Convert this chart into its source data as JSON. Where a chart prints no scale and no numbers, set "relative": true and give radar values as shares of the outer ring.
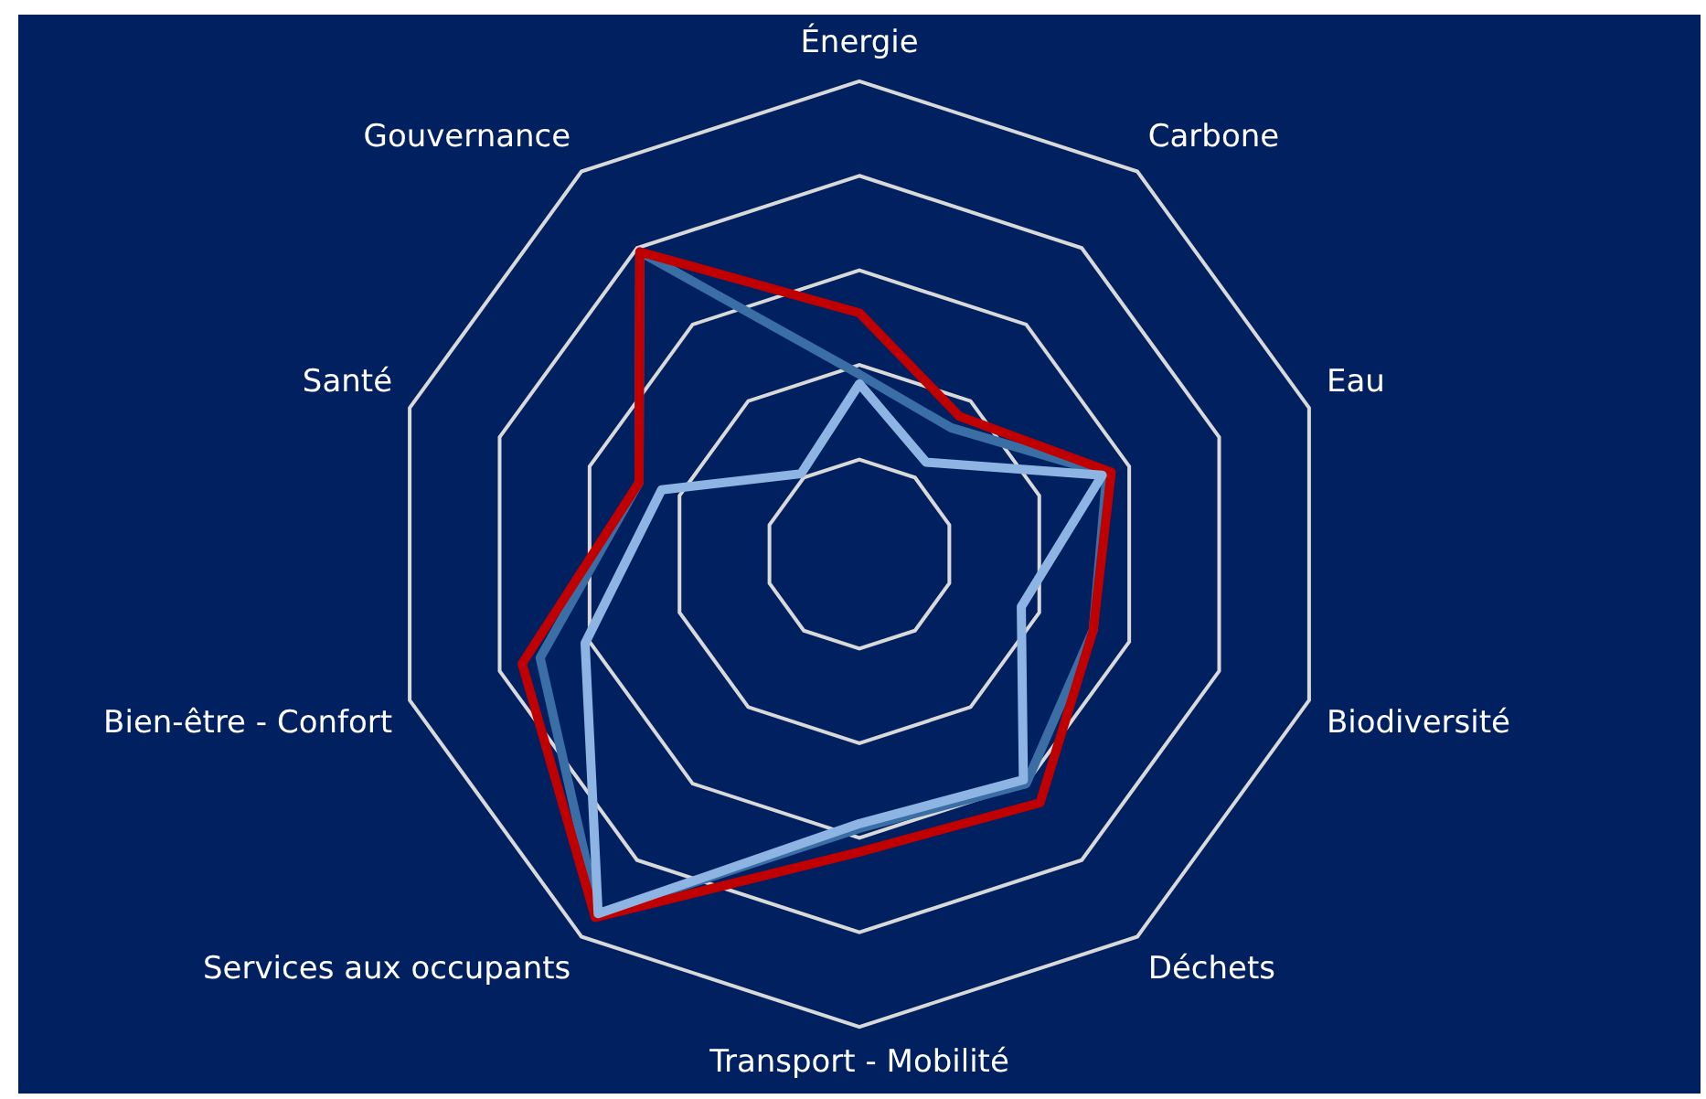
{
  "chart_data": {
    "type": "radar",
    "relative": true,
    "grid": true,
    "categories": [
      "Énergie",
      "Carbone",
      "Eau",
      "Biodiversité",
      "Déchets",
      "Transport - Mobilité",
      "Services aux occupants",
      "Bien-être - Confort",
      "Santé",
      "Gouvernance"
    ],
    "series": [
      {
        "color": "#3a6ea5",
        "values": [
          0.38,
          0.33,
          0.55,
          0.52,
          0.6,
          0.58,
          0.94,
          0.71,
          0.49,
          0.79
        ]
      },
      {
        "color": "#c00000",
        "values": [
          0.51,
          0.36,
          0.56,
          0.52,
          0.65,
          0.63,
          0.95,
          0.75,
          0.49,
          0.79
        ]
      },
      {
        "color": "#8db4e2",
        "values": [
          0.36,
          0.24,
          0.54,
          0.36,
          0.59,
          0.57,
          0.94,
          0.61,
          0.44,
          0.21
        ]
      }
    ]
  }
}
